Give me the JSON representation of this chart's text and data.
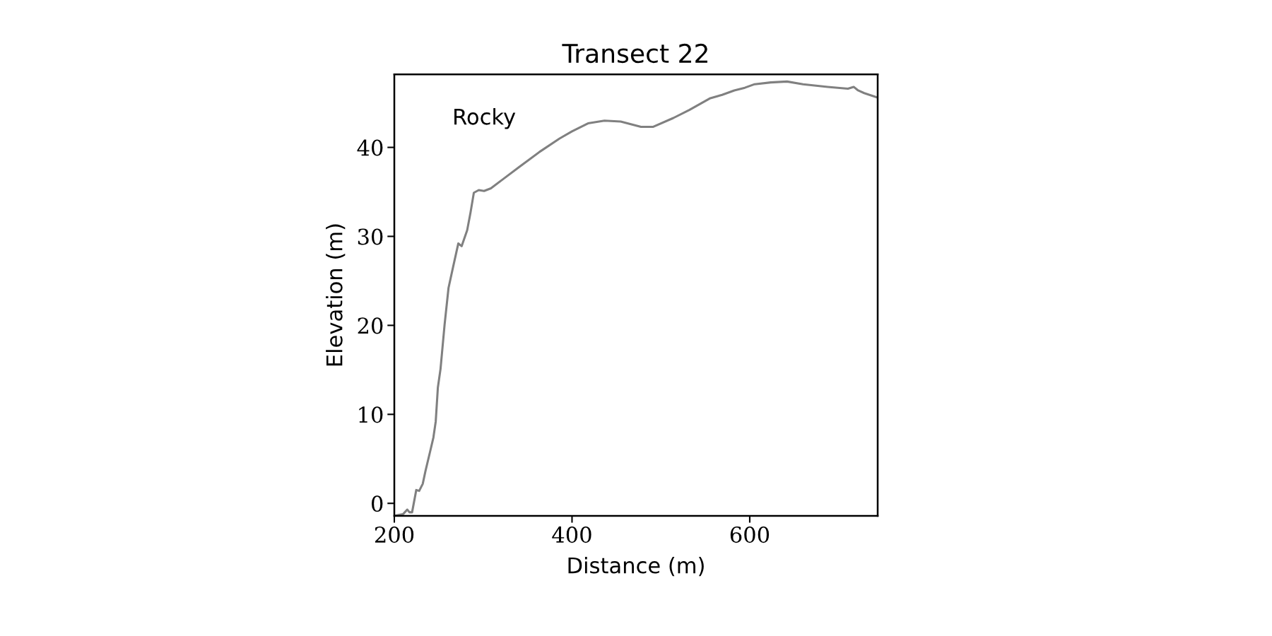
{
  "chart_data": {
    "type": "line",
    "title": "Transect 22",
    "xlabel": "Distance (m)",
    "ylabel": "Elevation (m)",
    "annotations": [
      "Rocky"
    ],
    "series": [
      {
        "color": "#808080",
        "x": [
          200,
          210,
          214.6,
          217,
          220,
          224.7,
          228,
          232,
          235,
          240,
          244,
          246.6,
          249,
          252,
          256.6,
          261,
          266,
          272,
          275.8,
          282,
          285.8,
          289.5,
          295,
          301,
          308.7,
          322,
          340.6,
          363.5,
          386,
          400,
          418,
          436.5,
          454.8,
          477.6,
          491,
          514,
          532,
          555,
          568.9,
          582.6,
          594.5,
          605.5,
          623.7,
          642,
          660,
          687.7,
          710.5,
          717,
          722,
          728.8,
          744
        ],
        "values": [
          -1.4,
          -1.2,
          -0.7,
          -1,
          -1,
          1.5,
          1.4,
          2.2,
          3.6,
          5.7,
          7.4,
          9.2,
          13,
          15.1,
          20.1,
          24.2,
          26.5,
          29.2,
          28.9,
          30.7,
          32.7,
          34.9,
          35.2,
          35.1,
          35.4,
          36.4,
          37.8,
          39.5,
          41,
          41.8,
          42.7,
          43,
          42.9,
          42.3,
          42.3,
          43.3,
          44.2,
          45.5,
          45.9,
          46.4,
          46.7,
          47.1,
          47.3,
          47.4,
          47.1,
          46.8,
          46.6,
          46.8,
          46.4,
          46.1,
          45.6
        ]
      }
    ],
    "xlim": [
      200,
      744
    ],
    "ylim": [
      -1.4,
      48.2
    ],
    "xticks": [
      200,
      400,
      600
    ],
    "yticks": [
      0,
      10,
      20,
      30,
      40
    ],
    "grid": false,
    "legend": false,
    "marker": "none",
    "line_style": "solid"
  }
}
